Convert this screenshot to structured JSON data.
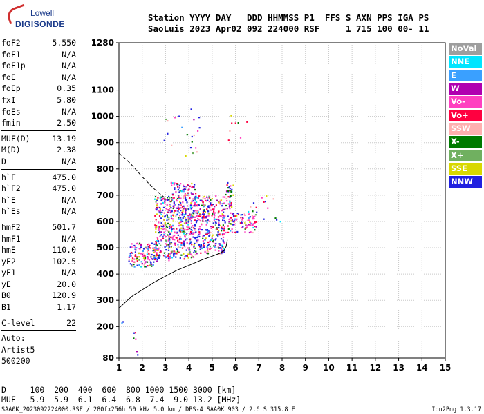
{
  "logo": {
    "line1": "Lowell",
    "line2": "DIGISONDE"
  },
  "header": {
    "labels": "Station YYYY DAY   DDD HHMMSS P1  FFS S AXN PPS IGA PS",
    "values": "SaoLuis 2023 Apr02 092 224000 RSF     1 715 100 00- 11"
  },
  "parameters": {
    "group1": [
      {
        "name": "foF2",
        "value": "5.550"
      },
      {
        "name": "foF1",
        "value": "N/A"
      },
      {
        "name": "foF1p",
        "value": "N/A"
      },
      {
        "name": "foE",
        "value": "N/A"
      },
      {
        "name": "foEp",
        "value": "0.35"
      },
      {
        "name": "fxI",
        "value": "5.80"
      },
      {
        "name": "foEs",
        "value": "N/A"
      },
      {
        "name": "fmin",
        "value": "2.50"
      }
    ],
    "group2": [
      {
        "name": "MUF(D)",
        "value": "13.19"
      },
      {
        "name": "M(D)",
        "value": "2.38"
      },
      {
        "name": "D",
        "value": "N/A"
      }
    ],
    "group3": [
      {
        "name": "h`F",
        "value": "475.0"
      },
      {
        "name": "h`F2",
        "value": "475.0"
      },
      {
        "name": "h`E",
        "value": "N/A"
      },
      {
        "name": "h`Es",
        "value": "N/A"
      }
    ],
    "group4": [
      {
        "name": "hmF2",
        "value": "501.7"
      },
      {
        "name": "hmF1",
        "value": "N/A"
      },
      {
        "name": "hmE",
        "value": "110.0"
      },
      {
        "name": "yF2",
        "value": "102.5"
      },
      {
        "name": "yF1",
        "value": "N/A"
      },
      {
        "name": "yE",
        "value": "20.0"
      },
      {
        "name": "B0",
        "value": "120.9"
      },
      {
        "name": "B1",
        "value": "1.17"
      }
    ],
    "group5": [
      {
        "name": "C-level",
        "value": "22"
      }
    ],
    "auto_lines": [
      "Auto:",
      "Artist5",
      "500200"
    ]
  },
  "legend": [
    {
      "label": "NoVal",
      "color": "#9e9e9e"
    },
    {
      "label": "NNE",
      "color": "#00e5ff"
    },
    {
      "label": "E",
      "color": "#3aa0ff"
    },
    {
      "label": "W",
      "color": "#b000b0"
    },
    {
      "label": "Vo-",
      "color": "#ff40c0"
    },
    {
      "label": "Vo+",
      "color": "#ff0040"
    },
    {
      "label": "SSW",
      "color": "#ffb0b0"
    },
    {
      "label": "X-",
      "color": "#007a00"
    },
    {
      "label": "X+",
      "color": "#70b060"
    },
    {
      "label": "SSE",
      "color": "#d8d800"
    },
    {
      "label": "NNW",
      "color": "#2020e0"
    }
  ],
  "muf_table": {
    "d_row": "D     100  200  400  600  800 1000 1500 3000 [km]",
    "muf_row": "MUF   5.9  5.9  6.1  6.4  6.8  7.4  9.0 13.2 [MHz]"
  },
  "footer": {
    "left": "SAA0K_2023092224000.RSF / 280fx256h 50 kHz 5.0 km / DPS-4 SAA0K 903 / 2.6 S 315.8 E",
    "right": "Ion2Png 1.3.17"
  },
  "chart_data": {
    "type": "scatter",
    "title": "",
    "xlabel": "",
    "ylabel": "",
    "xlim": [
      1,
      15
    ],
    "ylim": [
      80,
      1280
    ],
    "x_ticks": [
      1,
      2,
      3,
      4,
      5,
      6,
      7,
      8,
      9,
      10,
      11,
      12,
      13,
      14,
      15
    ],
    "y_ticks": [
      80,
      200,
      300,
      400,
      500,
      600,
      700,
      800,
      900,
      1000,
      1100,
      1280
    ],
    "grid": true,
    "series": [
      {
        "style": "solid",
        "points": [
          [
            1.0,
            270
          ],
          [
            1.3,
            295
          ],
          [
            1.6,
            318
          ],
          [
            2.0,
            340
          ],
          [
            2.5,
            368
          ],
          [
            3.0,
            392
          ],
          [
            3.5,
            415
          ],
          [
            4.0,
            433
          ],
          [
            4.5,
            452
          ],
          [
            5.0,
            468
          ],
          [
            5.3,
            478
          ],
          [
            5.5,
            488
          ],
          [
            5.6,
            505
          ],
          [
            5.65,
            530
          ]
        ]
      },
      {
        "style": "dashed",
        "points": [
          [
            1.0,
            860
          ],
          [
            1.5,
            820
          ],
          [
            2.0,
            770
          ],
          [
            2.5,
            725
          ],
          [
            2.9,
            695
          ],
          [
            3.2,
            680
          ]
        ]
      }
    ],
    "echo_regions": [
      {
        "xmin": 1.4,
        "xmax": 2.5,
        "ymin": 430,
        "ymax": 520,
        "density": 120
      },
      {
        "xmin": 2.5,
        "xmax": 3.2,
        "ymin": 450,
        "ymax": 700,
        "density": 220
      },
      {
        "xmin": 3.2,
        "xmax": 4.3,
        "ymin": 460,
        "ymax": 750,
        "density": 380
      },
      {
        "xmin": 4.3,
        "xmax": 5.5,
        "ymin": 480,
        "ymax": 700,
        "density": 300
      },
      {
        "xmin": 5.4,
        "xmax": 6.9,
        "ymin": 560,
        "ymax": 640,
        "density": 100
      },
      {
        "xmin": 5.5,
        "xmax": 5.9,
        "ymin": 650,
        "ymax": 750,
        "density": 40
      },
      {
        "xmin": 2.9,
        "xmax": 4.5,
        "ymin": 850,
        "ymax": 1030,
        "density": 22
      },
      {
        "xmin": 5.4,
        "xmax": 6.8,
        "ymin": 880,
        "ymax": 1020,
        "density": 8
      },
      {
        "xmin": 6.5,
        "xmax": 7.9,
        "ymin": 600,
        "ymax": 720,
        "density": 14
      },
      {
        "xmin": 1.1,
        "xmax": 1.2,
        "ymin": 215,
        "ymax": 225,
        "density": 2
      },
      {
        "xmin": 1.6,
        "xmax": 1.8,
        "ymin": 88,
        "ymax": 180,
        "density": 6
      }
    ]
  }
}
